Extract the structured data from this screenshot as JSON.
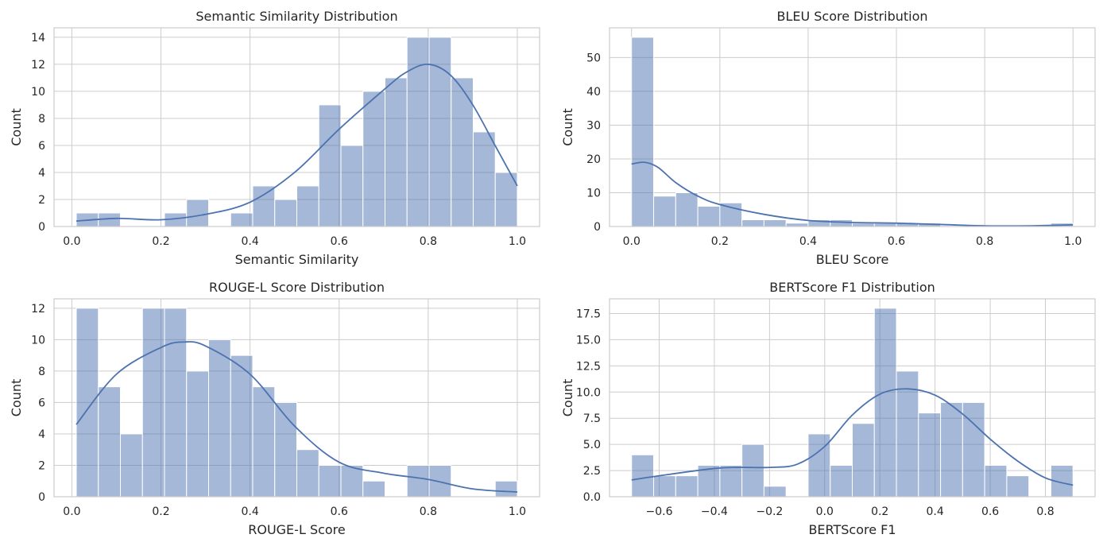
{
  "chart_data": [
    {
      "type": "bar",
      "title": "Semantic Similarity Distribution",
      "xlabel": "Semantic Similarity",
      "ylabel": "Count",
      "xlim": [
        -0.04,
        1.05
      ],
      "ylim": [
        0,
        14.7
      ],
      "xticks": [
        0.0,
        0.2,
        0.4,
        0.6,
        0.8,
        1.0
      ],
      "xtick_labels": [
        "0.0",
        "0.2",
        "0.4",
        "0.6",
        "0.8",
        "1.0"
      ],
      "yticks": [
        0,
        2,
        4,
        6,
        8,
        10,
        12,
        14
      ],
      "ytick_labels": [
        "0",
        "2",
        "4",
        "6",
        "8",
        "10",
        "12",
        "14"
      ],
      "bin_edges": [
        0.01,
        0.0595,
        0.109,
        0.1585,
        0.208,
        0.2575,
        0.307,
        0.3565,
        0.406,
        0.4555,
        0.505,
        0.5545,
        0.604,
        0.6535,
        0.703,
        0.7525,
        0.802,
        0.8515,
        0.901,
        0.9505,
        1.0
      ],
      "counts": [
        1,
        1,
        0,
        0,
        1,
        2,
        0,
        1,
        3,
        2,
        3,
        9,
        6,
        10,
        11,
        14,
        14,
        11,
        7,
        4
      ],
      "kde_x": [
        0.01,
        0.1,
        0.2,
        0.3,
        0.4,
        0.5,
        0.6,
        0.7,
        0.75,
        0.8,
        0.85,
        0.9,
        0.95,
        1.0
      ],
      "kde_y": [
        0.4,
        0.6,
        0.5,
        0.9,
        1.8,
        4.0,
        7.2,
        10.1,
        11.4,
        12.0,
        11.2,
        9.0,
        6.0,
        3.0
      ],
      "grid": true
    },
    {
      "type": "bar",
      "title": "BLEU Score Distribution",
      "xlabel": "BLEU Score",
      "ylabel": "Count",
      "xlim": [
        -0.05,
        1.05
      ],
      "ylim": [
        0,
        58.8
      ],
      "xticks": [
        0.0,
        0.2,
        0.4,
        0.6,
        0.8,
        1.0
      ],
      "xtick_labels": [
        "0.0",
        "0.2",
        "0.4",
        "0.6",
        "0.8",
        "1.0"
      ],
      "yticks": [
        0,
        10,
        20,
        30,
        40,
        50
      ],
      "ytick_labels": [
        "0",
        "10",
        "20",
        "30",
        "40",
        "50"
      ],
      "bin_edges": [
        0.0,
        0.05,
        0.1,
        0.15,
        0.2,
        0.25,
        0.3,
        0.35,
        0.4,
        0.45,
        0.5,
        0.55,
        0.6,
        0.65,
        0.7,
        0.75,
        0.8,
        0.85,
        0.9,
        0.95,
        1.0
      ],
      "counts": [
        56,
        9,
        10,
        6,
        7,
        2,
        2,
        1,
        2,
        2,
        1,
        1,
        1,
        1,
        0,
        0,
        0,
        0,
        0,
        1
      ],
      "kde_x": [
        0.0,
        0.03,
        0.06,
        0.1,
        0.15,
        0.2,
        0.3,
        0.4,
        0.5,
        0.6,
        0.7,
        0.8,
        0.9,
        1.0
      ],
      "kde_y": [
        18.5,
        19.0,
        17.5,
        13.0,
        9.0,
        6.5,
        3.6,
        1.8,
        1.2,
        1.0,
        0.6,
        0.2,
        0.2,
        0.5
      ],
      "grid": true
    },
    {
      "type": "bar",
      "title": "ROUGE-L Score Distribution",
      "xlabel": "ROUGE-L Score",
      "ylabel": "Count",
      "xlim": [
        -0.04,
        1.05
      ],
      "ylim": [
        0,
        12.6
      ],
      "xticks": [
        0.0,
        0.2,
        0.4,
        0.6,
        0.8,
        1.0
      ],
      "xtick_labels": [
        "0.0",
        "0.2",
        "0.4",
        "0.6",
        "0.8",
        "1.0"
      ],
      "yticks": [
        0,
        2,
        4,
        6,
        8,
        10,
        12
      ],
      "ytick_labels": [
        "0",
        "2",
        "4",
        "6",
        "8",
        "10",
        "12"
      ],
      "bin_edges": [
        0.01,
        0.0595,
        0.109,
        0.1585,
        0.208,
        0.2575,
        0.307,
        0.3565,
        0.406,
        0.4555,
        0.505,
        0.5545,
        0.604,
        0.6535,
        0.703,
        0.7525,
        0.802,
        0.8515,
        0.901,
        0.9505,
        1.0
      ],
      "counts": [
        12,
        7,
        4,
        12,
        12,
        8,
        10,
        9,
        7,
        6,
        3,
        2,
        2,
        1,
        0,
        2,
        2,
        0,
        0,
        1
      ],
      "kde_x": [
        0.01,
        0.1,
        0.2,
        0.25,
        0.3,
        0.4,
        0.5,
        0.6,
        0.7,
        0.8,
        0.9,
        1.0
      ],
      "kde_y": [
        4.6,
        7.8,
        9.5,
        9.85,
        9.6,
        7.8,
        4.5,
        2.2,
        1.5,
        1.1,
        0.5,
        0.3
      ],
      "grid": true
    },
    {
      "type": "bar",
      "title": "BERTScore F1 Distribution",
      "xlabel": "BERTScore F1",
      "ylabel": "Count",
      "xlim": [
        -0.78,
        0.98
      ],
      "ylim": [
        0,
        18.9
      ],
      "xticks": [
        -0.6,
        -0.4,
        -0.2,
        0.0,
        0.2,
        0.4,
        0.6,
        0.8
      ],
      "xtick_labels": [
        "−0.6",
        "−0.4",
        "−0.2",
        "0.0",
        "0.2",
        "0.4",
        "0.6",
        "0.8"
      ],
      "yticks": [
        0,
        2.5,
        5,
        7.5,
        10,
        12.5,
        15,
        17.5
      ],
      "ytick_labels": [
        "0.0",
        "2.5",
        "5.0",
        "7.5",
        "10.0",
        "12.5",
        "15.0",
        "17.5"
      ],
      "bin_edges": [
        -0.7,
        -0.62,
        -0.54,
        -0.46,
        -0.38,
        -0.3,
        -0.22,
        -0.14,
        -0.06,
        0.02,
        0.1,
        0.18,
        0.26,
        0.34,
        0.42,
        0.5,
        0.58,
        0.66,
        0.74,
        0.82,
        0.9
      ],
      "counts": [
        4,
        2,
        2,
        3,
        3,
        5,
        1,
        0,
        6,
        3,
        7,
        18,
        12,
        8,
        9,
        9,
        3,
        2,
        0,
        3
      ],
      "kde_x": [
        -0.7,
        -0.6,
        -0.4,
        -0.3,
        -0.2,
        -0.1,
        0.0,
        0.1,
        0.2,
        0.3,
        0.4,
        0.5,
        0.6,
        0.7,
        0.8,
        0.9
      ],
      "kde_y": [
        1.6,
        2.0,
        2.7,
        2.8,
        2.8,
        3.1,
        4.8,
        7.8,
        9.8,
        10.3,
        9.7,
        7.9,
        5.5,
        3.4,
        1.8,
        1.1
      ],
      "grid": true
    }
  ]
}
